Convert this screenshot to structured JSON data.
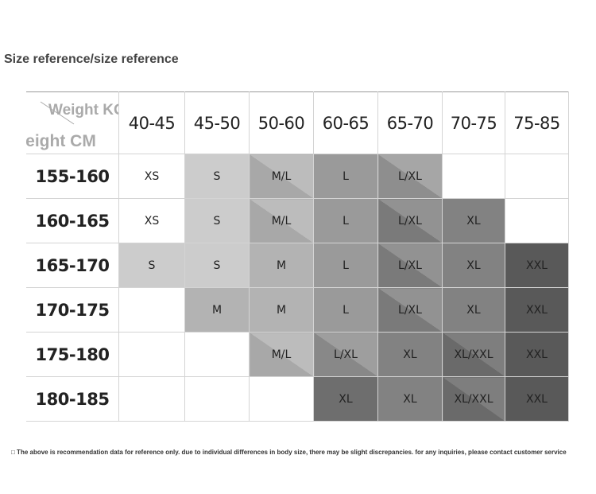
{
  "title": "Size reference/size reference",
  "table": {
    "corner_weight_label": "Weight KG",
    "corner_height_label": "Height CM",
    "weight_columns": [
      "40-45",
      "45-50",
      "50-60",
      "60-65",
      "65-70",
      "70-75",
      "75-85"
    ],
    "rows": [
      {
        "height": "155-160",
        "cells": [
          "XS",
          "S",
          "M/L",
          "L",
          "L/XL",
          "",
          ""
        ]
      },
      {
        "height": "160-165",
        "cells": [
          "XS",
          "S",
          "M/L",
          "L",
          "L/XL",
          "XL",
          ""
        ]
      },
      {
        "height": "165-170",
        "cells": [
          "S",
          "S",
          "M",
          "L",
          "L/XL",
          "XL",
          "XXL"
        ]
      },
      {
        "height": "170-175",
        "cells": [
          "",
          "M",
          "M",
          "L",
          "L/XL",
          "XL",
          "XXL"
        ]
      },
      {
        "height": "175-180",
        "cells": [
          "",
          "",
          "M/L",
          "L/XL",
          "XL",
          "XL/XXL",
          "XXL"
        ]
      },
      {
        "height": "180-185",
        "cells": [
          "",
          "",
          "",
          "XL",
          "XL",
          "XL/XXL",
          "XXL"
        ]
      }
    ]
  },
  "footnote": "□ The above is recommendation data for reference only. due to individual differences in body size, there may be slight discrepancies. for any inquiries, please contact customer service",
  "colors": {
    "background": "#ffffff",
    "title_text": "#444444",
    "header_label_gray": "#aaaaaa"
  }
}
